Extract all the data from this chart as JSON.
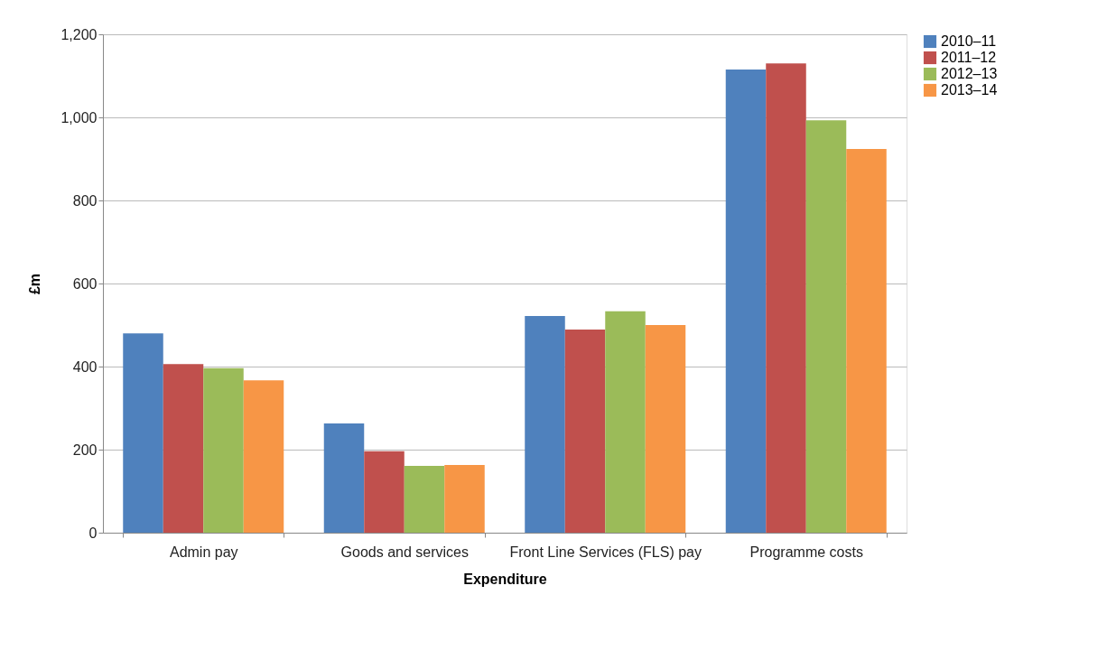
{
  "chart_data": {
    "type": "bar",
    "xlabel": "Expenditure",
    "ylabel": "£m",
    "categories": [
      "Admin pay",
      "Goods and services",
      "Front Line Services (FLS) pay",
      "Programme costs"
    ],
    "series": [
      {
        "name": "2010–11",
        "color": "#4f81bd",
        "values": [
          480,
          263,
          522,
          1115
        ]
      },
      {
        "name": "2011–12",
        "color": "#c0504d",
        "values": [
          406,
          196,
          489,
          1130
        ]
      },
      {
        "name": "2012–13",
        "color": "#9bbb59",
        "values": [
          396,
          161,
          533,
          993
        ]
      },
      {
        "name": "2013–14",
        "color": "#f79646",
        "values": [
          367,
          163,
          500,
          924
        ]
      }
    ],
    "ylim": [
      0,
      1200
    ],
    "yticks": [
      {
        "value": 0,
        "label": "0"
      },
      {
        "value": 200,
        "label": "200"
      },
      {
        "value": 400,
        "label": "400"
      },
      {
        "value": 600,
        "label": "600"
      },
      {
        "value": 800,
        "label": "800"
      },
      {
        "value": 1000,
        "label": "1,000"
      },
      {
        "value": 1200,
        "label": "1,200"
      }
    ],
    "grid": "y",
    "legend": "right"
  }
}
